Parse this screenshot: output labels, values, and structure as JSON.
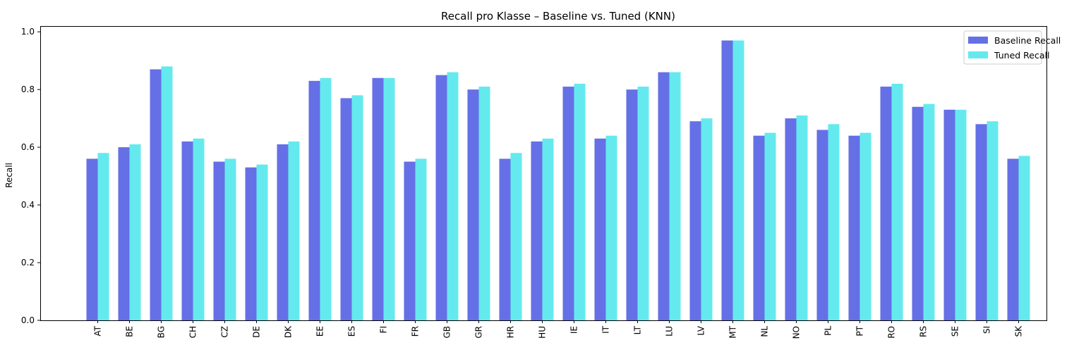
{
  "chart_data": {
    "type": "bar",
    "title": "Recall pro Klasse – Baseline vs. Tuned (KNN)",
    "xlabel": "",
    "ylabel": "Recall",
    "ylim": [
      0,
      1.02
    ],
    "yticks": [
      "0.0",
      "0.2",
      "0.4",
      "0.6",
      "0.8",
      "1.0"
    ],
    "categories": [
      "AT",
      "BE",
      "BG",
      "CH",
      "CZ",
      "DE",
      "DK",
      "EE",
      "ES",
      "FI",
      "FR",
      "GB",
      "GR",
      "HR",
      "HU",
      "IE",
      "IT",
      "LT",
      "LU",
      "LV",
      "MT",
      "NL",
      "NO",
      "PL",
      "PT",
      "RO",
      "RS",
      "SE",
      "SI",
      "SK"
    ],
    "series": [
      {
        "name": "Baseline Recall",
        "color": "#6570e6",
        "values": [
          0.56,
          0.6,
          0.87,
          0.62,
          0.55,
          0.53,
          0.61,
          0.83,
          0.77,
          0.84,
          0.55,
          0.85,
          0.8,
          0.56,
          0.62,
          0.81,
          0.63,
          0.8,
          0.86,
          0.69,
          0.97,
          0.64,
          0.7,
          0.66,
          0.64,
          0.81,
          0.74,
          0.73,
          0.68,
          0.56
        ]
      },
      {
        "name": "Tuned Recall",
        "color": "#64eaee",
        "values": [
          0.58,
          0.61,
          0.88,
          0.63,
          0.56,
          0.54,
          0.62,
          0.84,
          0.78,
          0.84,
          0.56,
          0.86,
          0.81,
          0.58,
          0.63,
          0.82,
          0.64,
          0.81,
          0.86,
          0.7,
          0.97,
          0.65,
          0.71,
          0.68,
          0.65,
          0.82,
          0.75,
          0.73,
          0.69,
          0.57
        ]
      }
    ],
    "grid": false,
    "legend_position": "top-right"
  }
}
